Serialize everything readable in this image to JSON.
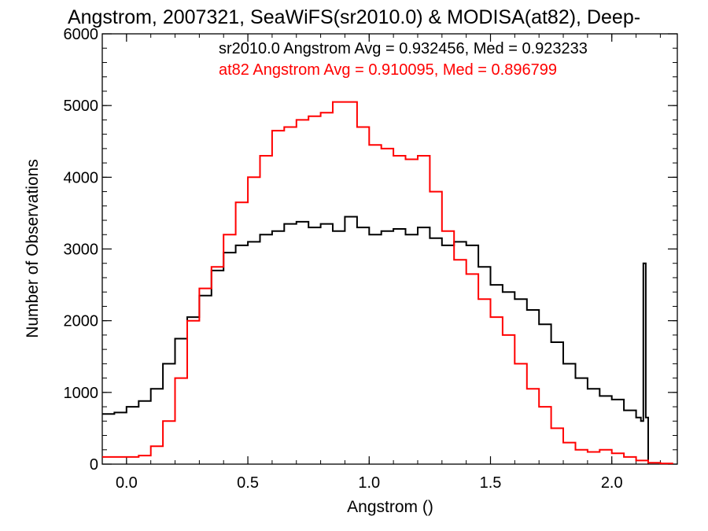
{
  "chart_data": {
    "type": "line",
    "title": "Angstrom, 2007321, SeaWiFS(sr2010.0) & MODISA(at82), Deep-",
    "xlabel": "Angstrom ()",
    "ylabel": "Number of Observations",
    "xlim": [
      -0.1,
      2.27
    ],
    "ylim": [
      0,
      6000
    ],
    "x_ticks": [
      0.0,
      0.5,
      1.0,
      1.5,
      2.0
    ],
    "x_tick_labels": [
      "0.0",
      "0.5",
      "1.0",
      "1.5",
      "2.0"
    ],
    "y_ticks": [
      0,
      1000,
      2000,
      3000,
      4000,
      5000,
      6000
    ],
    "y_tick_labels": [
      "0",
      "1000",
      "2000",
      "3000",
      "4000",
      "5000",
      "6000"
    ],
    "grid": false,
    "annotations": [
      {
        "text": "sr2010.0 Angstrom Avg = 0.932456, Med = 0.923233",
        "color": "#000000"
      },
      {
        "text": "at82 Angstrom Avg = 0.910095, Med = 0.896799",
        "color": "#ff0000"
      }
    ],
    "series": [
      {
        "color": "#000000",
        "x": [
          -0.1,
          -0.05,
          0.0,
          0.05,
          0.1,
          0.15,
          0.2,
          0.25,
          0.3,
          0.35,
          0.4,
          0.45,
          0.5,
          0.55,
          0.6,
          0.65,
          0.7,
          0.75,
          0.8,
          0.85,
          0.9,
          0.95,
          1.0,
          1.05,
          1.1,
          1.15,
          1.2,
          1.25,
          1.3,
          1.35,
          1.4,
          1.45,
          1.5,
          1.55,
          1.6,
          1.65,
          1.7,
          1.75,
          1.8,
          1.85,
          1.9,
          1.95,
          2.0,
          2.05,
          2.1,
          2.12,
          2.13,
          2.14,
          2.15
        ],
        "y": [
          700,
          720,
          800,
          880,
          1050,
          1400,
          1750,
          2050,
          2350,
          2700,
          2950,
          3050,
          3100,
          3200,
          3250,
          3350,
          3380,
          3300,
          3350,
          3250,
          3450,
          3300,
          3200,
          3250,
          3280,
          3200,
          3300,
          3150,
          3050,
          3100,
          3050,
          2750,
          2500,
          2400,
          2300,
          2150,
          1950,
          1700,
          1400,
          1200,
          1050,
          950,
          900,
          750,
          650,
          600,
          2800,
          650,
          0
        ]
      },
      {
        "color": "#ff0000",
        "x": [
          -0.1,
          -0.05,
          0.0,
          0.05,
          0.1,
          0.15,
          0.2,
          0.25,
          0.3,
          0.35,
          0.4,
          0.45,
          0.5,
          0.55,
          0.6,
          0.65,
          0.7,
          0.75,
          0.8,
          0.85,
          0.9,
          0.95,
          1.0,
          1.05,
          1.1,
          1.15,
          1.2,
          1.25,
          1.3,
          1.35,
          1.4,
          1.45,
          1.5,
          1.55,
          1.6,
          1.65,
          1.7,
          1.75,
          1.8,
          1.85,
          1.9,
          1.95,
          2.0,
          2.05,
          2.1,
          2.15,
          2.2,
          2.25
        ],
        "y": [
          100,
          100,
          100,
          120,
          250,
          600,
          1200,
          2000,
          2450,
          2750,
          3200,
          3650,
          4000,
          4300,
          4650,
          4700,
          4800,
          4850,
          4900,
          5050,
          5050,
          4700,
          4450,
          4400,
          4300,
          4250,
          4300,
          3800,
          3250,
          2850,
          2650,
          2300,
          2050,
          1800,
          1400,
          1050,
          800,
          500,
          300,
          200,
          170,
          200,
          150,
          100,
          50,
          20,
          10,
          0
        ]
      }
    ]
  }
}
